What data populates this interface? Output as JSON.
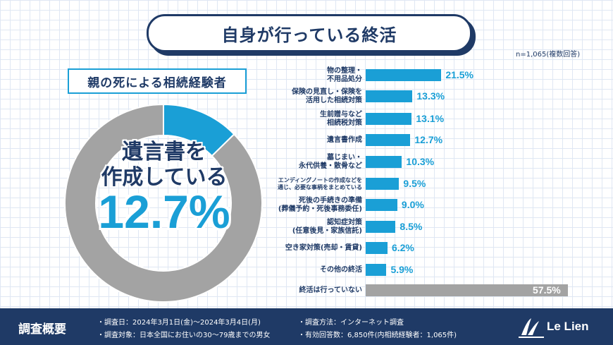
{
  "title": "自身が行っている終活",
  "note": "n=1,065(複数回答)",
  "subtitle": "親の死による相続経験者",
  "donut": {
    "line1": "遺言書を",
    "line2": "作成している",
    "percent_label": "12.7%",
    "value": 12.7,
    "accent_color": "#1a9fd6",
    "rest_color": "#a3a3a3"
  },
  "chart_data": {
    "type": "bar",
    "orientation": "horizontal",
    "categories": [
      [
        "物の整理・",
        "不用品処分"
      ],
      [
        "保険の見直し・保険を",
        "活用した相続対策"
      ],
      [
        "生前贈与など",
        "相続税対策"
      ],
      [
        "遺言書作成"
      ],
      [
        "墓じまい・",
        "永代供養・散骨など"
      ],
      [
        "エンディングノートの作成などを",
        "通じ、必要な事柄をまとめている"
      ],
      [
        "死後の手続きの準備",
        "(葬儀予約・死後事務委任)"
      ],
      [
        "認知症対策",
        "(任意後見・家族信託)"
      ],
      [
        "空き家対策(売却・賃貸)"
      ],
      [
        "その他の終活"
      ],
      [
        "終活は行っていない"
      ]
    ],
    "values": [
      21.5,
      13.3,
      13.1,
      12.7,
      10.3,
      9.5,
      9.0,
      8.5,
      6.2,
      5.9,
      57.5
    ],
    "value_labels": [
      "21.5%",
      "13.3%",
      "13.1%",
      "12.7%",
      "10.3%",
      "9.5%",
      "9.0%",
      "8.5%",
      "6.2%",
      "5.9%",
      "57.5%"
    ],
    "bar_color": "#1a9fd6",
    "last_bar_color": "#a3a3a3"
  },
  "footer": {
    "title": "調査概要",
    "date": "・調査日：2024年3月1日(金)～2024年3月4日(月)",
    "target": "・調査対象：日本全国にお住いの30～79歳までの男女",
    "method": "・調査方法：インターネット調査",
    "responses": "・有効回答数：6,850件(内相続経験者：1,065件)",
    "logo": "Le Lien"
  }
}
